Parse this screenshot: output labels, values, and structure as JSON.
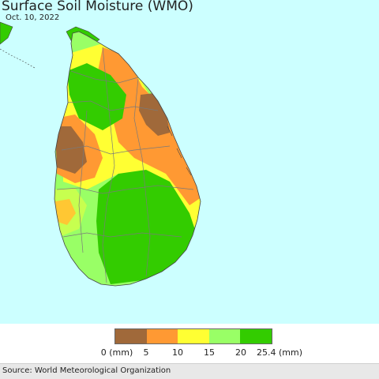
{
  "header": {
    "title": "Surface Soil Moisture (WMO)",
    "date": "Oct. 10, 2022"
  },
  "map": {
    "sea_color": "#ccffff",
    "land_color": "#eeeeee"
  },
  "legend": {
    "colors": [
      "#a0693a",
      "#ff9933",
      "#ffff33",
      "#99ff66",
      "#33cc00"
    ],
    "ticks": [
      "0 (mm)",
      "5",
      "10",
      "15",
      "20",
      "25.4 (mm)"
    ]
  },
  "footer": {
    "source": "Source: World Meteorological Organization"
  }
}
